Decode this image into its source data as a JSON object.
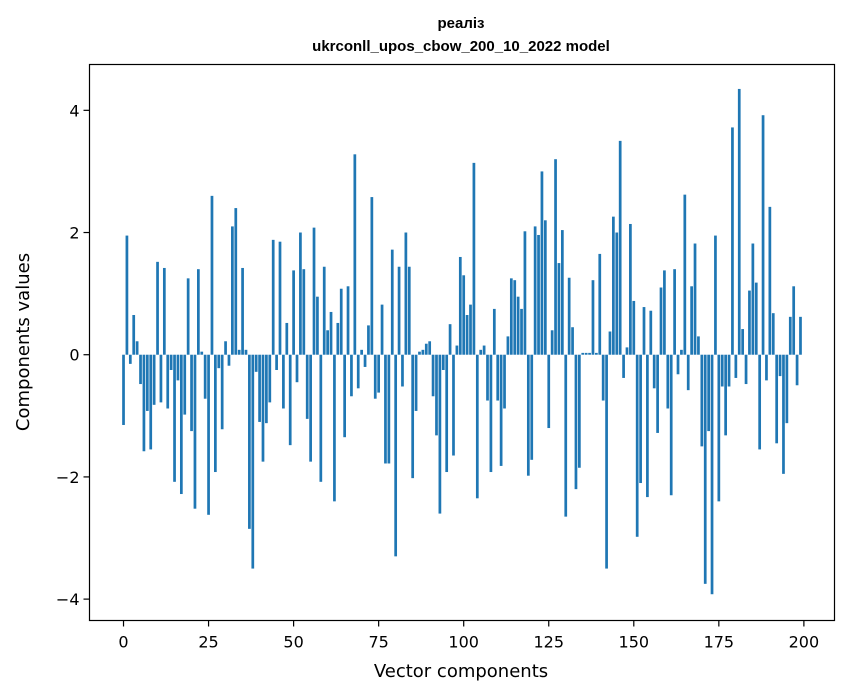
{
  "chart_data": {
    "type": "bar",
    "title_line1": "реаліз",
    "title_line2": "ukrconll_upos_cbow_200_10_2022 model",
    "xlabel": "Vector components",
    "ylabel": "Components values",
    "xlim": [
      -10,
      209
    ],
    "ylim": [
      -4.35,
      4.75
    ],
    "xticks": [
      0,
      25,
      50,
      75,
      100,
      125,
      150,
      175,
      200
    ],
    "yticks": [
      -4,
      -2,
      0,
      2,
      4
    ],
    "ytick_labels": [
      "−4",
      "−2",
      "0",
      "2",
      "4"
    ],
    "grid": false,
    "bar_color": "#1f77b4",
    "values": [
      -1.15,
      1.95,
      -0.15,
      0.65,
      0.22,
      -0.48,
      -1.58,
      -0.92,
      -1.55,
      -0.82,
      1.52,
      -0.78,
      1.42,
      -0.88,
      -0.25,
      -2.08,
      -0.42,
      -2.28,
      -0.98,
      1.25,
      -1.25,
      -2.52,
      1.4,
      0.05,
      -0.72,
      -2.62,
      2.6,
      -1.92,
      -0.22,
      -1.22,
      0.22,
      -0.18,
      2.1,
      2.4,
      0.08,
      1.42,
      0.08,
      -2.85,
      -3.5,
      -0.28,
      -1.1,
      -1.75,
      -1.12,
      -0.78,
      1.88,
      -0.25,
      1.85,
      -0.88,
      0.52,
      -1.48,
      1.38,
      -0.45,
      2.0,
      1.4,
      -1.05,
      -1.75,
      2.08,
      0.95,
      -2.08,
      1.44,
      0.4,
      0.7,
      -2.4,
      0.52,
      1.08,
      -1.35,
      1.12,
      -0.68,
      3.28,
      -0.55,
      0.08,
      -0.2,
      0.48,
      2.58,
      -0.72,
      -0.62,
      0.82,
      -1.78,
      -1.78,
      1.72,
      -3.3,
      1.44,
      -0.52,
      2.0,
      1.44,
      -2.02,
      -0.92,
      0.05,
      0.08,
      0.18,
      0.22,
      -0.68,
      -1.32,
      -2.6,
      -0.25,
      -1.92,
      0.5,
      -1.65,
      0.15,
      1.6,
      1.3,
      0.65,
      0.82,
      3.14,
      -2.35,
      0.08,
      0.15,
      -0.75,
      -1.92,
      0.75,
      -0.75,
      -1.82,
      -0.88,
      0.3,
      1.25,
      1.22,
      0.95,
      0.75,
      2.02,
      -1.98,
      -1.72,
      2.1,
      1.96,
      3.0,
      2.2,
      -1.2,
      0.4,
      3.2,
      1.5,
      2.04,
      -2.65,
      1.26,
      0.45,
      -2.2,
      -1.85,
      0.03,
      0.03,
      0.03,
      1.22,
      0.03,
      1.65,
      -0.75,
      -3.5,
      0.38,
      2.26,
      2.0,
      3.5,
      -0.38,
      0.12,
      2.14,
      0.88,
      -2.98,
      -2.1,
      0.78,
      -2.33,
      0.72,
      -0.55,
      -1.28,
      1.1,
      1.38,
      -0.88,
      -2.3,
      1.4,
      -0.32,
      0.08,
      2.62,
      -0.58,
      1.12,
      1.82,
      0.3,
      -1.5,
      -3.75,
      -1.25,
      -3.92,
      1.95,
      -2.4,
      -0.52,
      -1.32,
      -0.52,
      3.72,
      -0.38,
      4.35,
      0.42,
      -0.48,
      1.05,
      1.82,
      1.18,
      -1.55,
      3.92,
      -0.42,
      2.42,
      0.68,
      -1.45,
      -0.35,
      -1.95,
      -1.12,
      0.62,
      1.12,
      -0.5,
      0.62
    ]
  }
}
